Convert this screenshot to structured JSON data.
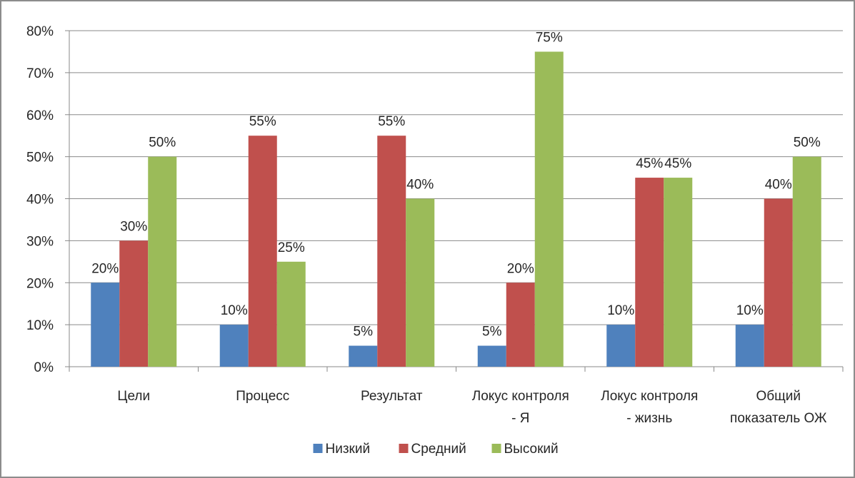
{
  "chart_data": {
    "type": "bar",
    "categories": [
      [
        "Цели"
      ],
      [
        "Процесс"
      ],
      [
        "Результат"
      ],
      [
        "Локус контроля",
        "- Я"
      ],
      [
        "Локус контроля",
        "- жизнь"
      ],
      [
        "Общий",
        "показатель ОЖ"
      ]
    ],
    "series": [
      {
        "name": "Низкий",
        "color": "#4f81bd",
        "values": [
          20,
          10,
          5,
          5,
          10,
          10
        ]
      },
      {
        "name": "Средний",
        "color": "#c0504d",
        "values": [
          30,
          55,
          55,
          20,
          45,
          40
        ]
      },
      {
        "name": "Высокий",
        "color": "#9bbb59",
        "values": [
          50,
          25,
          40,
          75,
          45,
          50
        ]
      }
    ],
    "ylim": [
      0,
      80
    ],
    "ytick_step": 10,
    "value_suffix": "%",
    "grid": true,
    "legend_position": "bottom"
  }
}
